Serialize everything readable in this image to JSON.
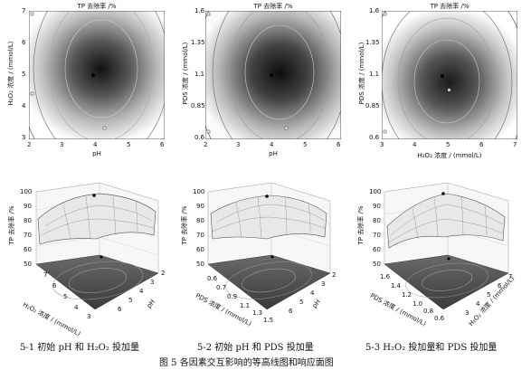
{
  "contours": [
    {
      "title": "TP 去除率 /%",
      "ylabel": "H₂O₂ 浓度 / (mmol/L)",
      "xlabel": "pH",
      "yticks": [
        "7",
        "6",
        "5",
        "4",
        "3"
      ],
      "xticks": [
        "2",
        "3",
        "4",
        "5",
        "6"
      ]
    },
    {
      "title": "TP 去除率 /%",
      "ylabel": "PDS 浓度 / (mmol/L)",
      "xlabel": "pH",
      "yticks": [
        "1.6",
        "1.35",
        "1.1",
        "0.85",
        "0.6"
      ],
      "xticks": [
        "2",
        "3",
        "4",
        "5",
        "6"
      ]
    },
    {
      "title": "TP 去除率 /%",
      "ylabel": "PDS 浓度 / (mmol/L)",
      "xlabel": "H₂O₂ 浓度 / (mmol/L)",
      "yticks": [
        "1.6",
        "1.35",
        "1.1",
        "0.85",
        "0.6"
      ],
      "xticks": [
        "3",
        "4",
        "5",
        "6",
        "7"
      ]
    }
  ],
  "surfaces": [
    {
      "zlabel": "TP 去除率 /%",
      "zticks": [
        "100",
        "90",
        "80",
        "70",
        "60",
        "50"
      ],
      "axis_a_label": "H₂O₂ 浓度 / (mmol/L)",
      "axis_a_ticks": [
        "3",
        "4",
        "5",
        "6",
        "7"
      ],
      "axis_b_label": "pH",
      "axis_b_ticks": [
        "2",
        "3",
        "4",
        "5",
        "6"
      ]
    },
    {
      "zlabel": "TP 去除率 /%",
      "zticks": [
        "100",
        "90",
        "80",
        "70",
        "60",
        "50"
      ],
      "axis_a_label": "PDS 浓度 / (mmol/L)",
      "axis_a_ticks": [
        "0.6",
        "0.7",
        "0.9",
        "1.1",
        "1.3",
        "1.5"
      ],
      "axis_b_label": "pH",
      "axis_b_ticks": [
        "2",
        "3",
        "4",
        "5",
        "6"
      ]
    },
    {
      "zlabel": "TP 去除率 /%",
      "zticks": [
        "100",
        "90",
        "80",
        "70",
        "60",
        "50"
      ],
      "axis_a_label": "PDS 浓度 / (mmol/L)",
      "axis_a_ticks": [
        "0.6",
        "0.8",
        "1.0",
        "1.2",
        "1.4",
        "1.6"
      ],
      "axis_b_label": "H₂O₂ 浓度 / (mmol/L)",
      "axis_b_ticks": [
        "3",
        "4",
        "5",
        "6",
        "7"
      ]
    }
  ],
  "captions": [
    "5-1   初始 pH 和 H₂O₂ 投加量",
    "5-2   初始 pH 和 PDS 投加量",
    "5-3   H₂O₂ 投加量和 PDS 投加量"
  ],
  "figure_title": "图 5   各因素交互影响的等高线图和响应面图"
}
